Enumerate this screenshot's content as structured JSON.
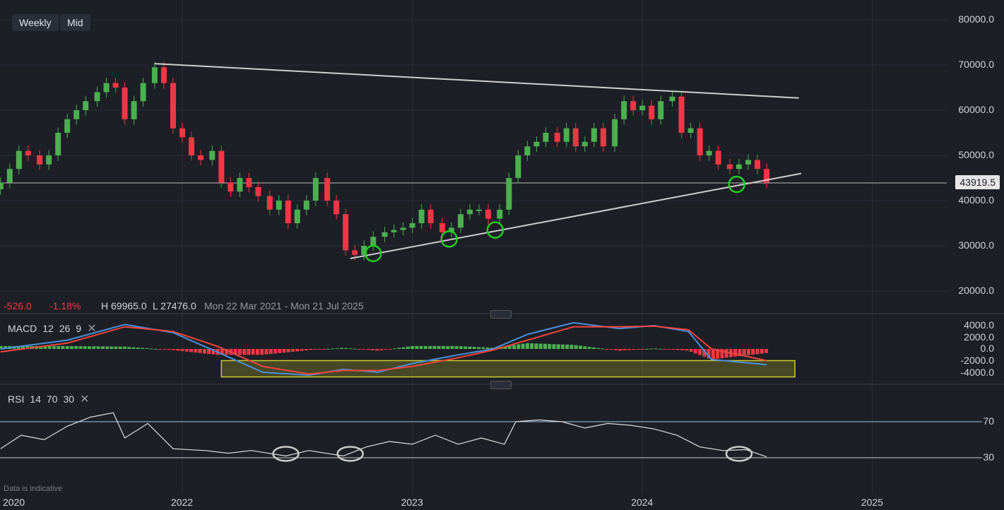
{
  "toolbar": {
    "interval": "Weekly",
    "price_type": "Mid"
  },
  "legend": {
    "change": "-526.0",
    "change_pct": "-1.18%",
    "high": "H 69965.0",
    "low": "L 27476.0",
    "range": "Mon 22 Mar 2021 - Mon 21 Jul 2025"
  },
  "last_price": "43919.5",
  "note": "Data is indicative",
  "macd": {
    "name": "MACD",
    "fast": "12",
    "slow": "26",
    "signal": "9"
  },
  "rsi": {
    "name": "RSI",
    "period": "14",
    "upper": "70",
    "lower": "30"
  },
  "colors": {
    "background": "#1c1f26",
    "up": "#4caf50",
    "down": "#f23645",
    "macd_line": "#4a90d9",
    "signal_line": "#f2453d",
    "trendline": "#cfcfcf",
    "highlight_circle": "#22cc22",
    "rsi_line": "#e0e0e0",
    "highlight_box": "#cccc33"
  },
  "chart_data": {
    "type": "candlestick",
    "price_axis": {
      "ticks": [
        "80000.0",
        "70000.0",
        "60000.0",
        "50000.0",
        "40000.0",
        "30000.0",
        "20000.0"
      ],
      "range": [
        20000,
        80000
      ]
    },
    "time_axis": {
      "ticks": [
        "2020",
        "2022",
        "2023",
        "2024",
        "2025"
      ]
    },
    "close_series": [
      {
        "t": 2021.21,
        "c": 44000
      },
      {
        "t": 2021.25,
        "c": 47000
      },
      {
        "t": 2021.29,
        "c": 51000
      },
      {
        "t": 2021.33,
        "c": 50000
      },
      {
        "t": 2021.38,
        "c": 48000
      },
      {
        "t": 2021.42,
        "c": 50000
      },
      {
        "t": 2021.46,
        "c": 55000
      },
      {
        "t": 2021.5,
        "c": 58000
      },
      {
        "t": 2021.54,
        "c": 60000
      },
      {
        "t": 2021.58,
        "c": 62000
      },
      {
        "t": 2021.63,
        "c": 64000
      },
      {
        "t": 2021.67,
        "c": 66000
      },
      {
        "t": 2021.71,
        "c": 65000
      },
      {
        "t": 2021.75,
        "c": 58000
      },
      {
        "t": 2021.79,
        "c": 62000
      },
      {
        "t": 2021.83,
        "c": 66000
      },
      {
        "t": 2021.88,
        "c": 69500
      },
      {
        "t": 2021.92,
        "c": 66000
      },
      {
        "t": 2021.96,
        "c": 56000
      },
      {
        "t": 2022.0,
        "c": 54000
      },
      {
        "t": 2022.04,
        "c": 50000
      },
      {
        "t": 2022.08,
        "c": 49000
      },
      {
        "t": 2022.13,
        "c": 51000
      },
      {
        "t": 2022.17,
        "c": 44000
      },
      {
        "t": 2022.21,
        "c": 42000
      },
      {
        "t": 2022.25,
        "c": 45000
      },
      {
        "t": 2022.29,
        "c": 43000
      },
      {
        "t": 2022.33,
        "c": 41000
      },
      {
        "t": 2022.38,
        "c": 38000
      },
      {
        "t": 2022.42,
        "c": 40000
      },
      {
        "t": 2022.46,
        "c": 35000
      },
      {
        "t": 2022.5,
        "c": 38000
      },
      {
        "t": 2022.54,
        "c": 40000
      },
      {
        "t": 2022.58,
        "c": 45000
      },
      {
        "t": 2022.63,
        "c": 40000
      },
      {
        "t": 2022.67,
        "c": 37000
      },
      {
        "t": 2022.71,
        "c": 29000
      },
      {
        "t": 2022.75,
        "c": 28000
      },
      {
        "t": 2022.79,
        "c": 30000
      },
      {
        "t": 2022.83,
        "c": 32000
      },
      {
        "t": 2022.88,
        "c": 33000
      },
      {
        "t": 2022.92,
        "c": 33500
      },
      {
        "t": 2022.96,
        "c": 34000
      },
      {
        "t": 2023.0,
        "c": 35000
      },
      {
        "t": 2023.04,
        "c": 38000
      },
      {
        "t": 2023.08,
        "c": 35000
      },
      {
        "t": 2023.13,
        "c": 33000
      },
      {
        "t": 2023.17,
        "c": 34000
      },
      {
        "t": 2023.21,
        "c": 37000
      },
      {
        "t": 2023.25,
        "c": 38000
      },
      {
        "t": 2023.29,
        "c": 38000
      },
      {
        "t": 2023.33,
        "c": 36000
      },
      {
        "t": 2023.38,
        "c": 38000
      },
      {
        "t": 2023.42,
        "c": 45000
      },
      {
        "t": 2023.46,
        "c": 50000
      },
      {
        "t": 2023.5,
        "c": 52000
      },
      {
        "t": 2023.54,
        "c": 53000
      },
      {
        "t": 2023.58,
        "c": 55000
      },
      {
        "t": 2023.63,
        "c": 53000
      },
      {
        "t": 2023.67,
        "c": 56000
      },
      {
        "t": 2023.71,
        "c": 52000
      },
      {
        "t": 2023.75,
        "c": 53000
      },
      {
        "t": 2023.79,
        "c": 56000
      },
      {
        "t": 2023.83,
        "c": 52000
      },
      {
        "t": 2023.88,
        "c": 58000
      },
      {
        "t": 2023.92,
        "c": 62000
      },
      {
        "t": 2023.96,
        "c": 60000
      },
      {
        "t": 2024.0,
        "c": 61000
      },
      {
        "t": 2024.04,
        "c": 58000
      },
      {
        "t": 2024.08,
        "c": 62000
      },
      {
        "t": 2024.13,
        "c": 63000
      },
      {
        "t": 2024.17,
        "c": 55000
      },
      {
        "t": 2024.21,
        "c": 56000
      },
      {
        "t": 2024.25,
        "c": 50000
      },
      {
        "t": 2024.29,
        "c": 51000
      },
      {
        "t": 2024.33,
        "c": 48000
      },
      {
        "t": 2024.38,
        "c": 47000
      },
      {
        "t": 2024.42,
        "c": 48000
      },
      {
        "t": 2024.46,
        "c": 49000
      },
      {
        "t": 2024.5,
        "c": 47000
      },
      {
        "t": 2024.54,
        "c": 44000
      }
    ],
    "trendlines": [
      {
        "name": "resistance",
        "from": {
          "t": 2021.88,
          "v": 70300
        },
        "to": {
          "t": 2024.68,
          "v": 62700
        }
      },
      {
        "name": "support",
        "from": {
          "t": 2022.73,
          "v": 27200
        },
        "to": {
          "t": 2024.69,
          "v": 46000
        }
      }
    ],
    "marked_lows": [
      {
        "t": 2022.83,
        "v": 28300
      },
      {
        "t": 2023.16,
        "v": 31500
      },
      {
        "t": 2023.36,
        "v": 33500
      },
      {
        "t": 2024.41,
        "v": 43600
      }
    ],
    "macd": {
      "axis_ticks": [
        "4000.0",
        "2000.0",
        "0.0",
        "-2000.0",
        "-4000.0"
      ],
      "range": [
        -5000,
        5000
      ],
      "macd_line": [
        [
          2021.21,
          0
        ],
        [
          2021.5,
          1500
        ],
        [
          2021.75,
          4200
        ],
        [
          2021.96,
          2800
        ],
        [
          2022.15,
          -500
        ],
        [
          2022.35,
          -4000
        ],
        [
          2022.55,
          -4500
        ],
        [
          2022.7,
          -3500
        ],
        [
          2022.85,
          -4000
        ],
        [
          2023.0,
          -2500
        ],
        [
          2023.2,
          -1000
        ],
        [
          2023.35,
          0
        ],
        [
          2023.5,
          2500
        ],
        [
          2023.7,
          4500
        ],
        [
          2023.9,
          3500
        ],
        [
          2024.05,
          4000
        ],
        [
          2024.2,
          3000
        ],
        [
          2024.3,
          -1800
        ],
        [
          2024.54,
          -2700
        ]
      ],
      "signal_line": [
        [
          2021.21,
          -500
        ],
        [
          2021.5,
          1000
        ],
        [
          2021.75,
          3800
        ],
        [
          2021.96,
          3000
        ],
        [
          2022.15,
          500
        ],
        [
          2022.35,
          -3000
        ],
        [
          2022.55,
          -4300
        ],
        [
          2022.7,
          -3700
        ],
        [
          2022.85,
          -3700
        ],
        [
          2023.0,
          -3000
        ],
        [
          2023.2,
          -1500
        ],
        [
          2023.35,
          -200
        ],
        [
          2023.5,
          1500
        ],
        [
          2023.7,
          3800
        ],
        [
          2023.9,
          3800
        ],
        [
          2024.05,
          3900
        ],
        [
          2024.2,
          3300
        ],
        [
          2024.3,
          0
        ],
        [
          2024.54,
          -2000
        ]
      ],
      "highlight_range": [
        -2000,
        -4800
      ]
    },
    "rsi": {
      "axis_ticks": [
        "70",
        "30"
      ],
      "range": [
        0,
        100
      ],
      "values": [
        [
          2021.21,
          40
        ],
        [
          2021.3,
          55
        ],
        [
          2021.4,
          50
        ],
        [
          2021.5,
          65
        ],
        [
          2021.6,
          75
        ],
        [
          2021.7,
          80
        ],
        [
          2021.75,
          52
        ],
        [
          2021.85,
          68
        ],
        [
          2021.96,
          40
        ],
        [
          2022.1,
          38
        ],
        [
          2022.2,
          35
        ],
        [
          2022.3,
          38
        ],
        [
          2022.45,
          32
        ],
        [
          2022.55,
          38
        ],
        [
          2022.7,
          32
        ],
        [
          2022.8,
          42
        ],
        [
          2022.9,
          48
        ],
        [
          2023.0,
          45
        ],
        [
          2023.1,
          55
        ],
        [
          2023.2,
          45
        ],
        [
          2023.3,
          52
        ],
        [
          2023.4,
          45
        ],
        [
          2023.45,
          70
        ],
        [
          2023.55,
          72
        ],
        [
          2023.65,
          70
        ],
        [
          2023.75,
          63
        ],
        [
          2023.85,
          68
        ],
        [
          2023.95,
          66
        ],
        [
          2024.05,
          62
        ],
        [
          2024.15,
          55
        ],
        [
          2024.25,
          42
        ],
        [
          2024.35,
          38
        ],
        [
          2024.45,
          39
        ],
        [
          2024.54,
          31
        ]
      ],
      "marked_lows": [
        [
          2022.45,
          32
        ],
        [
          2022.73,
          32
        ],
        [
          2024.42,
          32
        ]
      ]
    }
  }
}
